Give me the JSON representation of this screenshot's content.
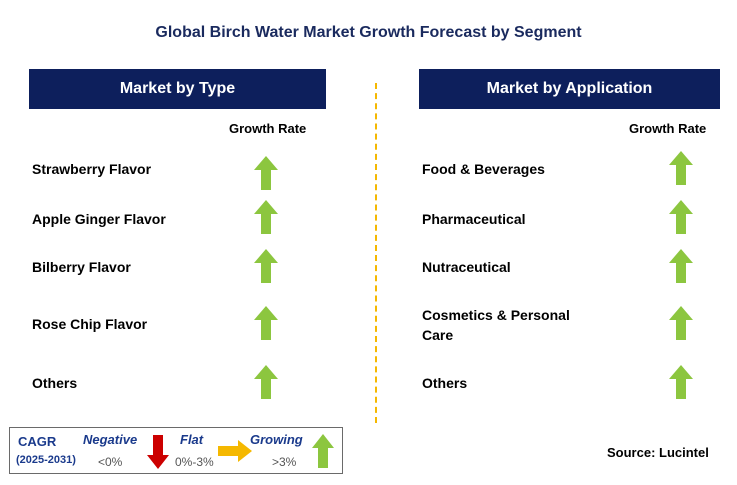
{
  "title": "Global Birch Water Market Growth Forecast by Segment",
  "left_panel": {
    "header": "Market by Type",
    "growth_label": "Growth Rate",
    "items": [
      {
        "label": "Strawberry Flavor",
        "trend": "growing"
      },
      {
        "label": "Apple Ginger Flavor",
        "trend": "growing"
      },
      {
        "label": "Bilberry Flavor",
        "trend": "growing"
      },
      {
        "label": "Rose Chip Flavor",
        "trend": "growing"
      },
      {
        "label": "Others",
        "trend": "growing"
      }
    ]
  },
  "right_panel": {
    "header": "Market by Application",
    "growth_label": "Growth Rate",
    "items": [
      {
        "label": "Food & Beverages",
        "trend": "growing"
      },
      {
        "label": "Pharmaceutical",
        "trend": "growing"
      },
      {
        "label": "Nutraceutical",
        "trend": "growing"
      },
      {
        "label": "Cosmetics & Personal Care",
        "trend": "growing"
      },
      {
        "label": "Others",
        "trend": "growing"
      }
    ]
  },
  "legend": {
    "cagr": "CAGR",
    "period": "(2025-2031)",
    "negative": "Negative",
    "negative_range": "<0%",
    "flat": "Flat",
    "flat_range": "0%-3%",
    "growing": "Growing",
    "growing_range": ">3%"
  },
  "source": "Source: Lucintel",
  "colors": {
    "header_bg": "#0d1f5c",
    "growing_arrow": "#8cc63f",
    "negative_arrow": "#cc0000",
    "flat_arrow": "#f5b800",
    "divider": "#f5b800"
  }
}
